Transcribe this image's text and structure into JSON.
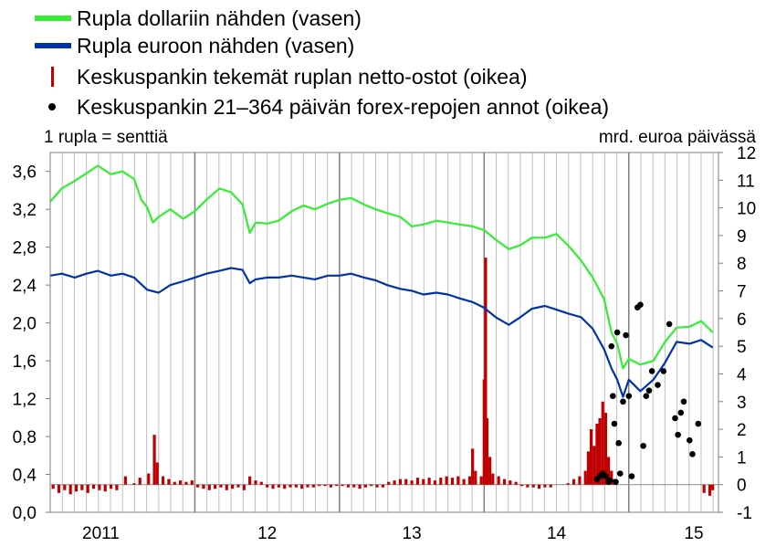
{
  "chart_data": {
    "type": "line",
    "title": "",
    "legend": [
      {
        "name": "Rupla dollariin nähden (vasen)",
        "marker": "line",
        "color": "#33ee33"
      },
      {
        "name": "Rupla euroon nähden (vasen)",
        "marker": "line",
        "color": "#0033aa"
      },
      {
        "name": "Keskuspankin tekemät ruplan netto-ostot (oikea)",
        "marker": "bar",
        "color": "#c00000"
      },
      {
        "name": "Keskuspankin 21–364 päivän forex-repojen annot (oikea)",
        "marker": "dot",
        "color": "#000000"
      }
    ],
    "left_axis": {
      "unit_label": "1 rupla  = senttiä",
      "min": 0,
      "max": 3.8,
      "ticks": [
        "0,0",
        "0,4",
        "0,8",
        "1,2",
        "1,6",
        "2,0",
        "2,4",
        "2,8",
        "3,2",
        "3,6"
      ]
    },
    "right_axis": {
      "unit_label": "mrd. euroa päivässä",
      "min": -1,
      "max": 12,
      "ticks": [
        "-1",
        "0",
        "1",
        "2",
        "3",
        "4",
        "5",
        "6",
        "7",
        "8",
        "9",
        "10",
        "11",
        "12"
      ]
    },
    "x_axis": {
      "start": 2011.0,
      "end": 2015.62,
      "year_labels": [
        {
          "label": "2011",
          "x": 2011.35
        },
        {
          "label": "12",
          "x": 2012.5
        },
        {
          "label": "13",
          "x": 2013.5
        },
        {
          "label": "14",
          "x": 2014.5
        },
        {
          "label": "15",
          "x": 2015.45
        }
      ],
      "year_separators": [
        2012.0,
        2013.0,
        2014.0,
        2015.0
      ]
    },
    "grid": "vertical monthly lines",
    "series": [
      {
        "name": "Rupla dollariin nähden (vasen)",
        "axis": "left",
        "points": [
          [
            2011.0,
            3.28
          ],
          [
            2011.08,
            3.42
          ],
          [
            2011.17,
            3.5
          ],
          [
            2011.25,
            3.58
          ],
          [
            2011.33,
            3.66
          ],
          [
            2011.42,
            3.57
          ],
          [
            2011.5,
            3.6
          ],
          [
            2011.58,
            3.52
          ],
          [
            2011.63,
            3.3
          ],
          [
            2011.67,
            3.22
          ],
          [
            2011.71,
            3.06
          ],
          [
            2011.75,
            3.12
          ],
          [
            2011.83,
            3.2
          ],
          [
            2011.92,
            3.1
          ],
          [
            2012.0,
            3.18
          ],
          [
            2012.08,
            3.3
          ],
          [
            2012.17,
            3.42
          ],
          [
            2012.25,
            3.38
          ],
          [
            2012.33,
            3.25
          ],
          [
            2012.38,
            2.95
          ],
          [
            2012.42,
            3.06
          ],
          [
            2012.5,
            3.05
          ],
          [
            2012.58,
            3.08
          ],
          [
            2012.67,
            3.18
          ],
          [
            2012.75,
            3.24
          ],
          [
            2012.83,
            3.2
          ],
          [
            2012.92,
            3.26
          ],
          [
            2013.0,
            3.3
          ],
          [
            2013.08,
            3.32
          ],
          [
            2013.17,
            3.25
          ],
          [
            2013.25,
            3.2
          ],
          [
            2013.33,
            3.16
          ],
          [
            2013.42,
            3.12
          ],
          [
            2013.5,
            3.02
          ],
          [
            2013.58,
            3.04
          ],
          [
            2013.67,
            3.08
          ],
          [
            2013.75,
            3.06
          ],
          [
            2013.83,
            3.04
          ],
          [
            2013.92,
            3.02
          ],
          [
            2014.0,
            2.98
          ],
          [
            2014.08,
            2.88
          ],
          [
            2014.17,
            2.78
          ],
          [
            2014.25,
            2.82
          ],
          [
            2014.33,
            2.9
          ],
          [
            2014.42,
            2.9
          ],
          [
            2014.5,
            2.94
          ],
          [
            2014.58,
            2.82
          ],
          [
            2014.67,
            2.66
          ],
          [
            2014.75,
            2.48
          ],
          [
            2014.83,
            2.25
          ],
          [
            2014.88,
            1.9
          ],
          [
            2014.92,
            1.78
          ],
          [
            2014.96,
            1.52
          ],
          [
            2015.0,
            1.62
          ],
          [
            2015.08,
            1.56
          ],
          [
            2015.17,
            1.6
          ],
          [
            2015.25,
            1.8
          ],
          [
            2015.33,
            1.95
          ],
          [
            2015.42,
            1.96
          ],
          [
            2015.5,
            2.02
          ],
          [
            2015.58,
            1.9
          ]
        ]
      },
      {
        "name": "Rupla euroon nähden (vasen)",
        "axis": "left",
        "points": [
          [
            2011.0,
            2.5
          ],
          [
            2011.08,
            2.52
          ],
          [
            2011.17,
            2.48
          ],
          [
            2011.25,
            2.52
          ],
          [
            2011.33,
            2.55
          ],
          [
            2011.42,
            2.5
          ],
          [
            2011.5,
            2.52
          ],
          [
            2011.58,
            2.48
          ],
          [
            2011.67,
            2.35
          ],
          [
            2011.75,
            2.32
          ],
          [
            2011.83,
            2.4
          ],
          [
            2011.92,
            2.44
          ],
          [
            2012.0,
            2.48
          ],
          [
            2012.08,
            2.52
          ],
          [
            2012.17,
            2.55
          ],
          [
            2012.25,
            2.58
          ],
          [
            2012.33,
            2.56
          ],
          [
            2012.38,
            2.42
          ],
          [
            2012.42,
            2.46
          ],
          [
            2012.5,
            2.48
          ],
          [
            2012.58,
            2.48
          ],
          [
            2012.67,
            2.5
          ],
          [
            2012.75,
            2.48
          ],
          [
            2012.83,
            2.46
          ],
          [
            2012.92,
            2.5
          ],
          [
            2013.0,
            2.5
          ],
          [
            2013.08,
            2.52
          ],
          [
            2013.17,
            2.48
          ],
          [
            2013.25,
            2.45
          ],
          [
            2013.33,
            2.4
          ],
          [
            2013.42,
            2.36
          ],
          [
            2013.5,
            2.34
          ],
          [
            2013.58,
            2.3
          ],
          [
            2013.67,
            2.32
          ],
          [
            2013.75,
            2.3
          ],
          [
            2013.83,
            2.26
          ],
          [
            2013.92,
            2.22
          ],
          [
            2014.0,
            2.16
          ],
          [
            2014.08,
            2.06
          ],
          [
            2014.17,
            1.98
          ],
          [
            2014.25,
            2.06
          ],
          [
            2014.33,
            2.15
          ],
          [
            2014.42,
            2.18
          ],
          [
            2014.5,
            2.14
          ],
          [
            2014.58,
            2.1
          ],
          [
            2014.67,
            2.06
          ],
          [
            2014.75,
            1.94
          ],
          [
            2014.83,
            1.72
          ],
          [
            2014.88,
            1.52
          ],
          [
            2014.92,
            1.4
          ],
          [
            2014.96,
            1.22
          ],
          [
            2015.0,
            1.4
          ],
          [
            2015.08,
            1.28
          ],
          [
            2015.17,
            1.4
          ],
          [
            2015.25,
            1.58
          ],
          [
            2015.33,
            1.8
          ],
          [
            2015.42,
            1.78
          ],
          [
            2015.5,
            1.82
          ],
          [
            2015.58,
            1.74
          ]
        ]
      }
    ],
    "net_purchases_bars": {
      "axis": "right",
      "points": [
        [
          2011.02,
          -0.15
        ],
        [
          2011.06,
          -0.3
        ],
        [
          2011.1,
          -0.2
        ],
        [
          2011.14,
          -0.35
        ],
        [
          2011.18,
          -0.25
        ],
        [
          2011.22,
          -0.2
        ],
        [
          2011.26,
          -0.3
        ],
        [
          2011.3,
          -0.15
        ],
        [
          2011.34,
          -0.2
        ],
        [
          2011.38,
          -0.25
        ],
        [
          2011.42,
          -0.15
        ],
        [
          2011.46,
          -0.2
        ],
        [
          2011.52,
          0.3
        ],
        [
          2011.58,
          0.05
        ],
        [
          2011.62,
          0.25
        ],
        [
          2011.68,
          0.4
        ],
        [
          2011.72,
          1.8
        ],
        [
          2011.74,
          0.8
        ],
        [
          2011.78,
          0.3
        ],
        [
          2011.82,
          0.2
        ],
        [
          2011.86,
          0.1
        ],
        [
          2011.9,
          0.15
        ],
        [
          2011.94,
          0.1
        ],
        [
          2011.98,
          0.15
        ],
        [
          2012.02,
          -0.1
        ],
        [
          2012.06,
          -0.15
        ],
        [
          2012.1,
          -0.2
        ],
        [
          2012.14,
          -0.15
        ],
        [
          2012.18,
          -0.1
        ],
        [
          2012.22,
          -0.2
        ],
        [
          2012.26,
          -0.15
        ],
        [
          2012.3,
          -0.1
        ],
        [
          2012.34,
          -0.2
        ],
        [
          2012.38,
          0.3
        ],
        [
          2012.42,
          0.15
        ],
        [
          2012.46,
          0.1
        ],
        [
          2012.5,
          -0.1
        ],
        [
          2012.54,
          -0.15
        ],
        [
          2012.58,
          -0.1
        ],
        [
          2012.62,
          -0.15
        ],
        [
          2012.66,
          -0.1
        ],
        [
          2012.7,
          -0.1
        ],
        [
          2012.74,
          -0.15
        ],
        [
          2012.78,
          -0.1
        ],
        [
          2012.82,
          -0.1
        ],
        [
          2012.86,
          -0.05
        ],
        [
          2012.9,
          -0.05
        ],
        [
          2012.94,
          -0.1
        ],
        [
          2012.98,
          -0.05
        ],
        [
          2013.02,
          -0.05
        ],
        [
          2013.06,
          -0.1
        ],
        [
          2013.1,
          -0.1
        ],
        [
          2013.14,
          -0.15
        ],
        [
          2013.18,
          -0.1
        ],
        [
          2013.22,
          -0.05
        ],
        [
          2013.26,
          -0.1
        ],
        [
          2013.3,
          -0.1
        ],
        [
          2013.34,
          0.1
        ],
        [
          2013.38,
          0.15
        ],
        [
          2013.42,
          0.2
        ],
        [
          2013.46,
          0.2
        ],
        [
          2013.5,
          0.15
        ],
        [
          2013.54,
          0.25
        ],
        [
          2013.58,
          0.2
        ],
        [
          2013.62,
          0.25
        ],
        [
          2013.66,
          0.15
        ],
        [
          2013.7,
          0.25
        ],
        [
          2013.74,
          0.3
        ],
        [
          2013.78,
          0.25
        ],
        [
          2013.82,
          0.3
        ],
        [
          2013.86,
          0.2
        ],
        [
          2013.9,
          0.3
        ],
        [
          2013.92,
          1.3
        ],
        [
          2013.94,
          0.5
        ],
        [
          2013.98,
          0.3
        ],
        [
          2014.0,
          3.8
        ],
        [
          2014.01,
          8.2
        ],
        [
          2014.02,
          2.4
        ],
        [
          2014.04,
          1.0
        ],
        [
          2014.06,
          0.4
        ],
        [
          2014.1,
          0.3
        ],
        [
          2014.14,
          0.2
        ],
        [
          2014.18,
          0.15
        ],
        [
          2014.22,
          0.1
        ],
        [
          2014.26,
          -0.05
        ],
        [
          2014.3,
          -0.1
        ],
        [
          2014.34,
          -0.1
        ],
        [
          2014.38,
          -0.15
        ],
        [
          2014.42,
          -0.1
        ],
        [
          2014.46,
          -0.1
        ],
        [
          2014.58,
          0.05
        ],
        [
          2014.62,
          0.2
        ],
        [
          2014.66,
          0.3
        ],
        [
          2014.7,
          0.5
        ],
        [
          2014.72,
          1.2
        ],
        [
          2014.74,
          2.0
        ],
        [
          2014.76,
          1.4
        ],
        [
          2014.78,
          2.2
        ],
        [
          2014.8,
          2.4
        ],
        [
          2014.82,
          3.0
        ],
        [
          2014.84,
          2.6
        ],
        [
          2014.86,
          1.0
        ],
        [
          2014.88,
          0.5
        ],
        [
          2014.9,
          0.2
        ],
        [
          2015.52,
          -0.3
        ],
        [
          2015.56,
          -0.4
        ],
        [
          2015.58,
          -0.2
        ]
      ]
    },
    "repo_dots": {
      "axis": "right",
      "points": [
        [
          2014.78,
          0.2
        ],
        [
          2014.8,
          0.3
        ],
        [
          2014.82,
          0.4
        ],
        [
          2014.84,
          0.3
        ],
        [
          2014.86,
          0.1
        ],
        [
          2014.87,
          0.15
        ],
        [
          2014.88,
          5.0
        ],
        [
          2014.89,
          3.2
        ],
        [
          2014.9,
          2.2
        ],
        [
          2014.91,
          0.1
        ],
        [
          2014.92,
          5.5
        ],
        [
          2014.93,
          1.5
        ],
        [
          2014.94,
          0.4
        ],
        [
          2014.96,
          3.0
        ],
        [
          2014.98,
          5.4
        ],
        [
          2015.0,
          3.2
        ],
        [
          2015.02,
          0.3
        ],
        [
          2015.06,
          6.4
        ],
        [
          2015.08,
          6.5
        ],
        [
          2015.1,
          1.4
        ],
        [
          2015.12,
          3.2
        ],
        [
          2015.14,
          3.4
        ],
        [
          2015.16,
          4.1
        ],
        [
          2015.2,
          3.6
        ],
        [
          2015.24,
          4.1
        ],
        [
          2015.28,
          5.8
        ],
        [
          2015.32,
          2.4
        ],
        [
          2015.34,
          1.8
        ],
        [
          2015.36,
          2.6
        ],
        [
          2015.38,
          3.0
        ],
        [
          2015.42,
          1.6
        ],
        [
          2015.44,
          1.1
        ],
        [
          2015.48,
          2.2
        ]
      ]
    }
  }
}
